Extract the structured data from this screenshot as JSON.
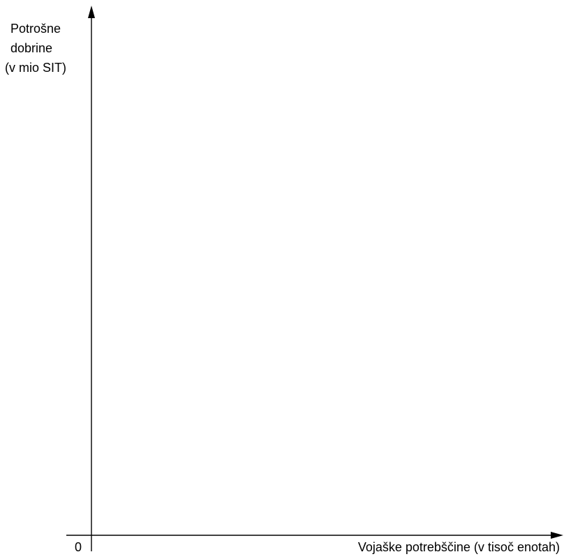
{
  "chart_data": {
    "type": "line",
    "title": "",
    "ylabel_lines": [
      "Potrošne",
      "dobrine",
      "(v mio SIT)"
    ],
    "xlabel": "Vojaške potrebščine (v tisoč enotah)",
    "origin_label": "0",
    "series": [],
    "grid": false,
    "legend": "none"
  }
}
